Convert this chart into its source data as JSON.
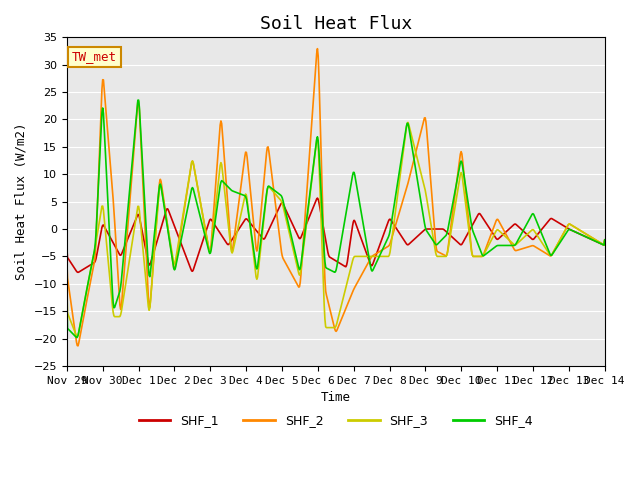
{
  "title": "Soil Heat Flux",
  "xlabel": "Time",
  "ylabel": "Soil Heat Flux (W/m2)",
  "ylim": [
    -25,
    35
  ],
  "yticks": [
    -25,
    -20,
    -15,
    -10,
    -5,
    0,
    5,
    10,
    15,
    20,
    25,
    30,
    35
  ],
  "background_color": "#e8e8e8",
  "fig_background": "#ffffff",
  "station_label": "TW_met",
  "series_colors": {
    "SHF_1": "#cc0000",
    "SHF_2": "#ff8800",
    "SHF_3": "#cccc00",
    "SHF_4": "#00cc00"
  },
  "legend_labels": [
    "SHF_1",
    "SHF_2",
    "SHF_3",
    "SHF_4"
  ],
  "xtick_labels": [
    "Nov 29",
    "Nov 30",
    "Dec 1",
    "Dec 2",
    "Dec 3",
    "Dec 4",
    "Dec 5",
    "Dec 6",
    "Dec 7",
    "Dec 8",
    "Dec 9",
    "Dec 10",
    "Dec 11",
    "Dec 12",
    "Dec 13",
    "Dec 14"
  ],
  "num_days": 15,
  "points_per_day": 48
}
